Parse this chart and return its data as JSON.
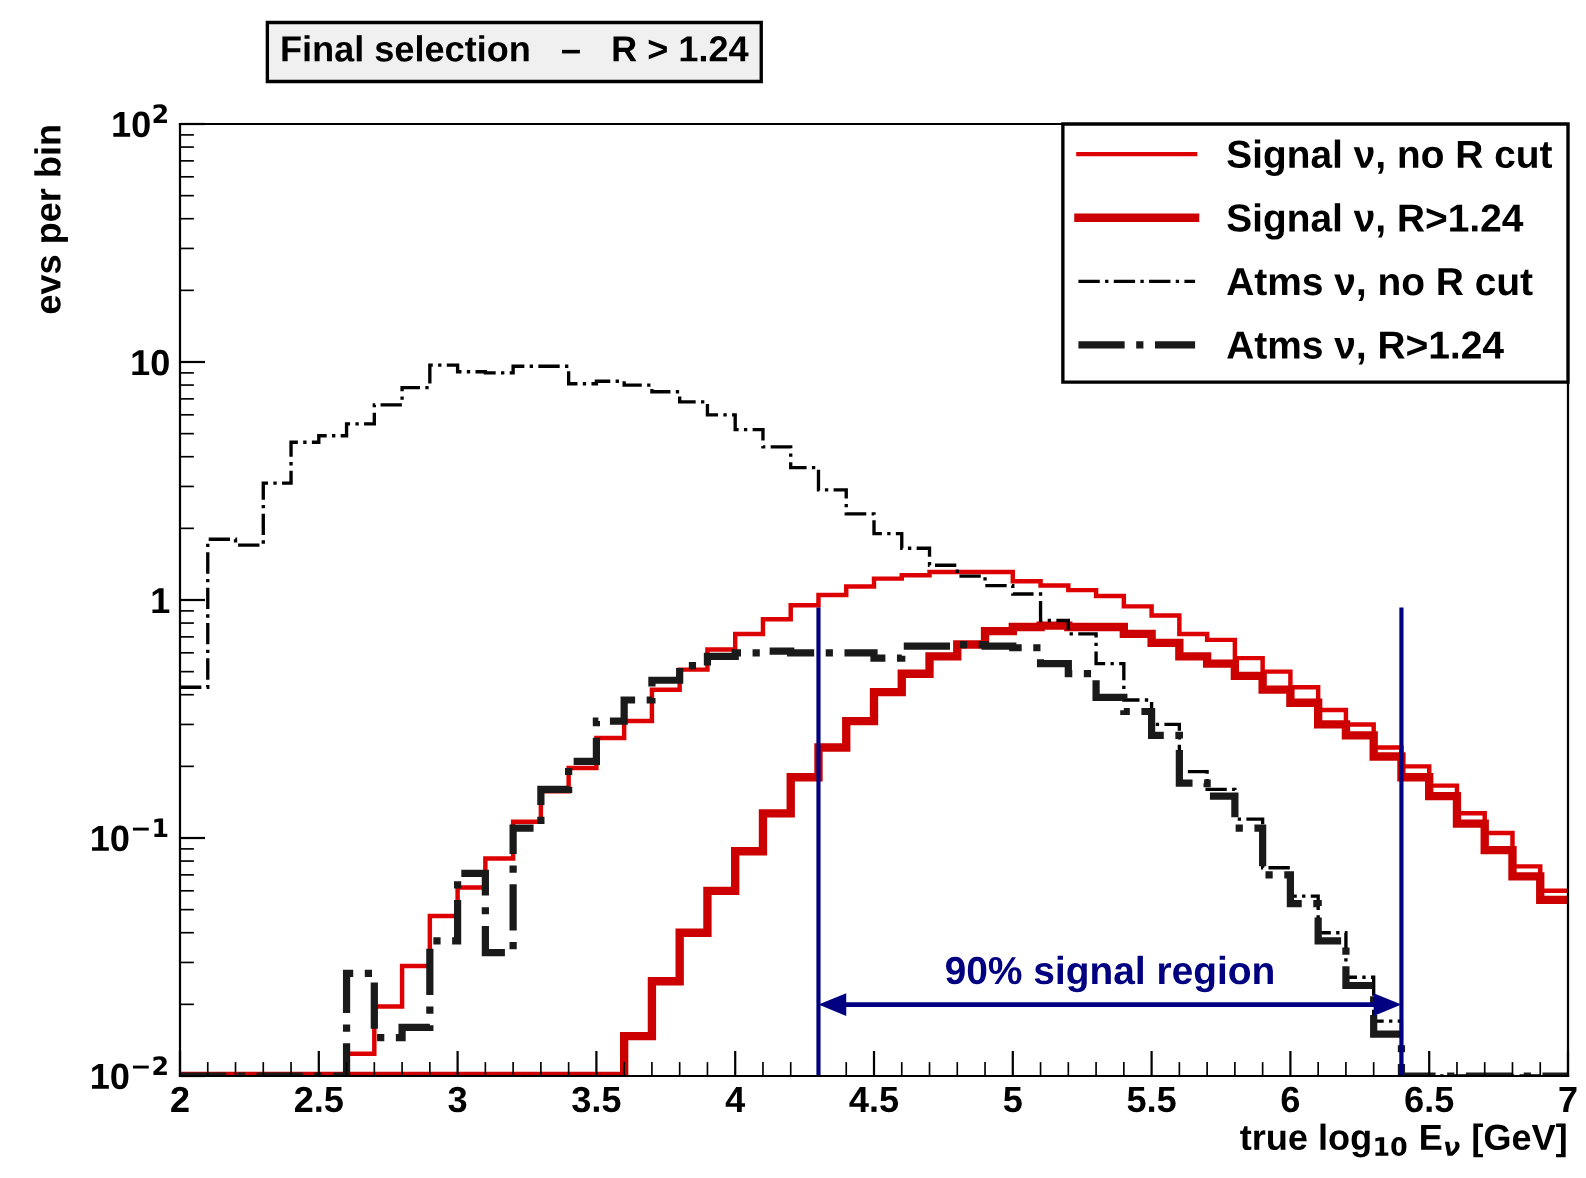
{
  "chart_data": {
    "type": "histogram",
    "title": "Final selection   –   R > 1.24",
    "xlabel": "true log$_{10}$ E$_{ν}$ [GeV]",
    "ylabel": "evs per bin",
    "bins": [
      2.0,
      2.1,
      2.2,
      2.3,
      2.4,
      2.5,
      2.6,
      2.7,
      2.8,
      2.9,
      3.0,
      3.1,
      3.2,
      3.3,
      3.4,
      3.5,
      3.6,
      3.7,
      3.8,
      3.9,
      4.0,
      4.1,
      4.2,
      4.3,
      4.4,
      4.5,
      4.6,
      4.7,
      4.8,
      4.9,
      5.0,
      5.1,
      5.2,
      5.3,
      5.4,
      5.5,
      5.6,
      5.7,
      5.8,
      5.9,
      6.0,
      6.1,
      6.2,
      6.3,
      6.4,
      6.5,
      6.6,
      6.7,
      6.8,
      6.9,
      7.0
    ],
    "series": [
      {
        "name": "Signal ν, no R cut",
        "color": "#dd0000",
        "line_style": "solid",
        "values": [
          0.01,
          0.01,
          0.01,
          0.01,
          0.01,
          0.01,
          0.0124,
          0.0196,
          0.029,
          0.047,
          0.062,
          0.082,
          0.117,
          0.157,
          0.197,
          0.263,
          0.31,
          0.42,
          0.51,
          0.62,
          0.72,
          0.83,
          0.95,
          1.05,
          1.14,
          1.23,
          1.27,
          1.31,
          1.31,
          1.31,
          1.2,
          1.15,
          1.1,
          1.04,
          0.94,
          0.86,
          0.72,
          0.68,
          0.57,
          0.5,
          0.43,
          0.345,
          0.3,
          0.24,
          0.2,
          0.166,
          0.127,
          0.105,
          0.076,
          0.06
        ]
      },
      {
        "name": "Signal ν, R>1.24",
        "color": "#cc0000",
        "line_style": "solid",
        "values": [
          0.01,
          0.01,
          0.01,
          0.01,
          0.01,
          0.01,
          0.01,
          0.01,
          0.01,
          0.01,
          0.01,
          0.01,
          0.01,
          0.01,
          0.01,
          0.01,
          0.0147,
          0.025,
          0.04,
          0.06,
          0.088,
          0.127,
          0.18,
          0.24,
          0.31,
          0.41,
          0.49,
          0.58,
          0.65,
          0.74,
          0.77,
          0.78,
          0.77,
          0.77,
          0.72,
          0.66,
          0.58,
          0.54,
          0.48,
          0.42,
          0.37,
          0.3,
          0.27,
          0.22,
          0.18,
          0.15,
          0.115,
          0.089,
          0.069,
          0.055
        ]
      },
      {
        "name": "Atms ν, no R cut",
        "color": "#000000",
        "line_style": "dashdot",
        "values": [
          0.43,
          1.8,
          1.7,
          3.1,
          4.6,
          4.9,
          5.5,
          6.6,
          7.8,
          9.7,
          9.1,
          9.0,
          9.6,
          9.6,
          8.1,
          8.3,
          8.0,
          7.5,
          6.8,
          6.0,
          5.2,
          4.4,
          3.6,
          2.9,
          2.3,
          1.9,
          1.65,
          1.4,
          1.26,
          1.15,
          1.06,
          0.82,
          0.72,
          0.54,
          0.38,
          0.3,
          0.19,
          0.16,
          0.12,
          0.075,
          0.057,
          0.04,
          0.026,
          0.017,
          0.01,
          0.01,
          0.01,
          0.01,
          0.01,
          0.01
        ]
      },
      {
        "name": "Atms ν, R>1.24",
        "color": "#1a1a1a",
        "line_style": "dashdot",
        "values": [
          0.01,
          0.01,
          0.01,
          0.01,
          0.01,
          0.01,
          0.027,
          0.0145,
          0.016,
          0.037,
          0.071,
          0.033,
          0.11,
          0.16,
          0.21,
          0.31,
          0.38,
          0.46,
          0.53,
          0.58,
          0.6,
          0.61,
          0.6,
          0.6,
          0.6,
          0.57,
          0.64,
          0.64,
          0.65,
          0.64,
          0.63,
          0.54,
          0.49,
          0.39,
          0.34,
          0.27,
          0.17,
          0.15,
          0.11,
          0.07,
          0.053,
          0.037,
          0.024,
          0.015,
          0.01,
          0.01,
          0.01,
          0.01,
          0.01,
          0.01
        ]
      }
    ],
    "log": "y",
    "xlim": [
      2,
      7
    ],
    "ylim": [
      0.01,
      100
    ],
    "xticks": [
      2,
      2.5,
      3,
      3.5,
      4,
      4.5,
      5,
      5.5,
      6,
      6.5,
      7
    ],
    "yticks": [
      {
        "value": 0.01,
        "label": "10$^{−2}$"
      },
      {
        "value": 0.1,
        "label": "10$^{−1}$"
      },
      1,
      10,
      {
        "value": 100,
        "label": "10$^{2}$"
      }
    ],
    "ref_lines": [
      {
        "axis": "x",
        "value": 4.3,
        "color": "#000080"
      },
      {
        "axis": "x",
        "value": 6.4,
        "color": "#000080"
      }
    ],
    "annotations": [
      "90% signal region"
    ],
    "grid": false,
    "legend": "top right"
  }
}
